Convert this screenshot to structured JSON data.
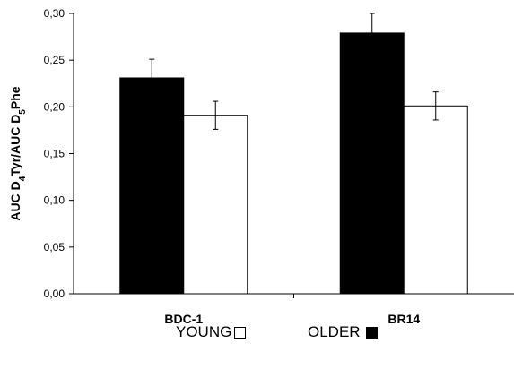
{
  "chart_data": {
    "type": "bar",
    "ylabel": {
      "parts": [
        {
          "text": "AUC D",
          "sub": false
        },
        {
          "text": "4",
          "sub": true
        },
        {
          "text": "Tyr/AUC D",
          "sub": false
        },
        {
          "text": "5",
          "sub": true
        },
        {
          "text": "Phe",
          "sub": false
        }
      ]
    },
    "ylim": [
      0,
      0.3
    ],
    "yticks": [
      {
        "value": 0.0,
        "label": "0,00"
      },
      {
        "value": 0.05,
        "label": "0,05"
      },
      {
        "value": 0.1,
        "label": "0,10"
      },
      {
        "value": 0.15,
        "label": "0,15"
      },
      {
        "value": 0.2,
        "label": "0,20"
      },
      {
        "value": 0.25,
        "label": "0,25"
      },
      {
        "value": 0.3,
        "label": "0,30"
      }
    ],
    "categories": [
      "BDC-1",
      "BR14"
    ],
    "series": [
      {
        "name": "OLDER",
        "color": "#000000",
        "values": [
          0.231,
          0.279
        ],
        "errors": [
          0.02,
          0.021
        ]
      },
      {
        "name": "YOUNG",
        "color": "#ffffff",
        "values": [
          0.191,
          0.201
        ],
        "errors": [
          0.015,
          0.015
        ]
      }
    ],
    "grid": false,
    "legend_position": "bottom"
  },
  "legend": {
    "young_label": "YOUNG",
    "older_label": "OLDER"
  }
}
